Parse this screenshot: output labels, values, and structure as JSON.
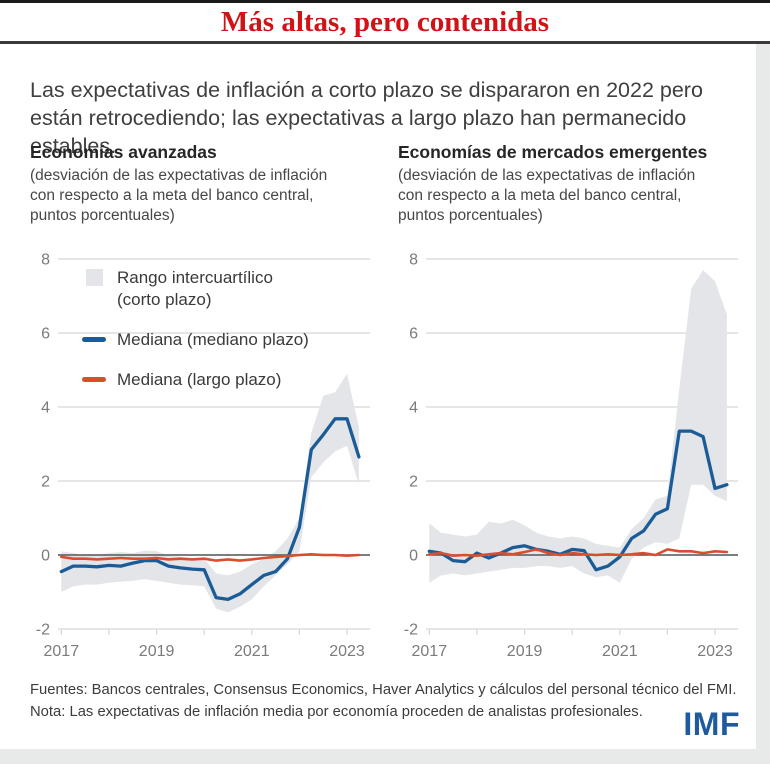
{
  "page": {
    "title": "Más altas, pero contenidas",
    "intro": "Las expectativas de inflación a corto plazo se dispararon en 2022 pero están retrocediendo; las expectativas a largo plazo han permanecido estables.",
    "source_line": "Fuentes: Bancos centrales, Consensus Economics, Haver Analytics y cálculos del personal técnico del FMI.",
    "note_line": "Nota: Las expectativas de inflación media por economía proceden de analistas profesionales.",
    "logo": "IMF"
  },
  "colors": {
    "title_red": "#d21217",
    "blue": "#1b5c97",
    "red": "#d94f2e",
    "band": "#e3e5e8",
    "grid": "#d8d8d8",
    "zero": "#56575b",
    "tick_text": "#7b7b7b",
    "imf_blue": "#1e5b9e"
  },
  "legend": {
    "items": [
      {
        "swatch": "band",
        "label": "Rango intercuartílico (corto plazo)"
      },
      {
        "swatch": "line-blue",
        "label": "Mediana (mediano plazo)"
      },
      {
        "swatch": "line-red",
        "label": "Mediana (largo plazo)"
      }
    ]
  },
  "chart_data": [
    {
      "type": "line",
      "title": "Economías avanzadas",
      "subtitle": "(desviación de las expectativas de inflación con respecto a la meta del banco central, puntos porcentuales)",
      "ylim": [
        -2,
        8
      ],
      "yticks": [
        -2,
        0,
        2,
        4,
        6,
        8
      ],
      "xticks": [
        2017,
        2018,
        2019,
        2020,
        2021,
        2022,
        2023
      ],
      "xtick_labels": {
        "2017": "2017",
        "2019": "2019",
        "2021": "2021",
        "2023": "2023"
      },
      "x": [
        2017.0,
        2017.25,
        2017.5,
        2017.75,
        2018.0,
        2018.25,
        2018.5,
        2018.75,
        2019.0,
        2019.25,
        2019.5,
        2019.75,
        2020.0,
        2020.25,
        2020.5,
        2020.75,
        2021.0,
        2021.25,
        2021.5,
        2021.75,
        2022.0,
        2022.25,
        2022.5,
        2022.75,
        2023.0,
        2023.25
      ],
      "series": [
        {
          "name": "Mediana (mediano plazo)",
          "color_key": "blue",
          "values": [
            -0.45,
            -0.3,
            -0.3,
            -0.32,
            -0.28,
            -0.3,
            -0.22,
            -0.15,
            -0.15,
            -0.3,
            -0.35,
            -0.38,
            -0.4,
            -1.15,
            -1.2,
            -1.05,
            -0.8,
            -0.55,
            -0.45,
            -0.1,
            0.75,
            2.85,
            3.25,
            3.68,
            3.68,
            2.65
          ]
        },
        {
          "name": "Mediana (largo plazo)",
          "color_key": "red",
          "values": [
            -0.05,
            -0.1,
            -0.1,
            -0.12,
            -0.1,
            -0.08,
            -0.1,
            -0.1,
            -0.08,
            -0.12,
            -0.1,
            -0.12,
            -0.1,
            -0.15,
            -0.12,
            -0.15,
            -0.12,
            -0.08,
            -0.05,
            -0.03,
            0.0,
            0.02,
            0.0,
            0.0,
            -0.02,
            0.0
          ]
        }
      ],
      "band": {
        "name": "Rango intercuartílico (corto plazo)",
        "upper": [
          0.1,
          0.05,
          0.0,
          0.0,
          0.05,
          0.08,
          0.05,
          0.12,
          0.1,
          -0.02,
          -0.05,
          -0.08,
          -0.1,
          -0.5,
          -0.55,
          -0.45,
          -0.25,
          -0.1,
          0.1,
          0.45,
          1.0,
          3.3,
          4.3,
          4.4,
          4.9,
          3.45
        ],
        "lower": [
          -1.0,
          -0.85,
          -0.8,
          -0.8,
          -0.75,
          -0.72,
          -0.7,
          -0.65,
          -0.7,
          -0.75,
          -0.8,
          -0.82,
          -0.85,
          -1.45,
          -1.55,
          -1.4,
          -1.2,
          -0.85,
          -0.55,
          -0.25,
          0.1,
          2.1,
          2.5,
          2.8,
          2.95,
          1.9
        ]
      }
    },
    {
      "type": "line",
      "title": "Economías de mercados emergentes",
      "subtitle": "(desviación de las expectativas de inflación con respecto a la meta del banco central, puntos porcentuales)",
      "ylim": [
        -2,
        8
      ],
      "yticks": [
        -2,
        0,
        2,
        4,
        6,
        8
      ],
      "xticks": [
        2017,
        2018,
        2019,
        2020,
        2021,
        2022,
        2023
      ],
      "xtick_labels": {
        "2017": "2017",
        "2019": "2019",
        "2021": "2021",
        "2023": "2023"
      },
      "x": [
        2017.0,
        2017.25,
        2017.5,
        2017.75,
        2018.0,
        2018.25,
        2018.5,
        2018.75,
        2019.0,
        2019.25,
        2019.5,
        2019.75,
        2020.0,
        2020.25,
        2020.5,
        2020.75,
        2021.0,
        2021.25,
        2021.5,
        2021.75,
        2022.0,
        2022.25,
        2022.5,
        2022.75,
        2023.0,
        2023.25
      ],
      "series": [
        {
          "name": "Mediana (mediano plazo)",
          "color_key": "blue",
          "values": [
            0.1,
            0.05,
            -0.15,
            -0.18,
            0.05,
            -0.08,
            0.05,
            0.2,
            0.25,
            0.15,
            0.1,
            0.02,
            0.15,
            0.12,
            -0.4,
            -0.3,
            -0.05,
            0.45,
            0.65,
            1.1,
            1.25,
            3.35,
            3.35,
            3.2,
            1.8,
            1.9
          ]
        },
        {
          "name": "Mediana (largo plazo)",
          "color_key": "red",
          "values": [
            0.02,
            0.05,
            -0.02,
            0.0,
            -0.02,
            0.02,
            0.05,
            0.02,
            0.08,
            0.15,
            0.05,
            0.0,
            0.05,
            0.02,
            0.0,
            0.02,
            0.0,
            0.02,
            0.05,
            0.0,
            0.15,
            0.1,
            0.1,
            0.05,
            0.1,
            0.08
          ]
        }
      ],
      "band": {
        "name": "Rango intercuartílico (corto plazo)",
        "upper": [
          0.85,
          0.6,
          0.55,
          0.5,
          0.55,
          0.9,
          0.85,
          0.95,
          0.8,
          0.6,
          0.5,
          0.45,
          0.5,
          0.45,
          0.3,
          0.25,
          0.2,
          0.7,
          1.0,
          1.5,
          1.6,
          4.5,
          7.2,
          7.7,
          7.4,
          6.5
        ],
        "lower": [
          -0.75,
          -0.55,
          -0.5,
          -0.55,
          -0.5,
          -0.45,
          -0.4,
          -0.35,
          -0.35,
          -0.3,
          -0.3,
          -0.35,
          -0.3,
          -0.5,
          -0.6,
          -0.55,
          -0.75,
          -0.1,
          0.2,
          0.35,
          0.3,
          0.45,
          1.9,
          1.9,
          1.6,
          1.45
        ]
      }
    }
  ]
}
